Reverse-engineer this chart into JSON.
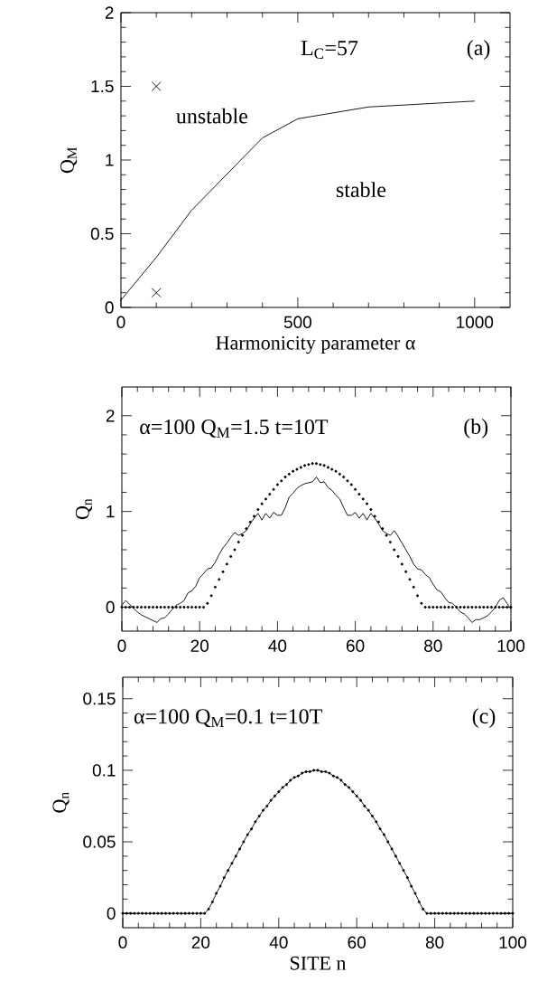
{
  "chart_data": [
    {
      "type": "line",
      "xlabel": "Harmonicity parameter α",
      "ylabel": "Q$_{M}$",
      "xlim": [
        0,
        1100
      ],
      "ylim": [
        0,
        2
      ],
      "xticks": [
        0,
        500,
        1000
      ],
      "yticks": [
        0,
        0.5,
        1,
        1.5,
        2
      ],
      "annotations": [
        "L$_{C}$=57",
        "(a)",
        "unstable",
        "stable"
      ],
      "series": [
        {
          "color": "#000000",
          "line_style": "solid",
          "x": [
            0,
            100,
            200,
            400,
            500,
            700,
            1000
          ],
          "values": [
            0.05,
            0.34,
            0.66,
            1.15,
            1.28,
            1.36,
            1.4
          ]
        },
        {
          "type": "scatter",
          "color": "#000000",
          "marker": "cross",
          "x": [
            100,
            100
          ],
          "values": [
            1.5,
            0.1
          ]
        }
      ]
    },
    {
      "type": "line",
      "ylabel": "Q$_{n}$",
      "xlim": [
        0,
        100
      ],
      "ylim": [
        -0.25,
        2.3
      ],
      "xticks": [
        0,
        20,
        40,
        60,
        80,
        100
      ],
      "yticks": [
        0,
        1,
        2
      ],
      "annotations": [
        "α=100  Q$_{M}$=1.5  t=10T",
        "(b)"
      ],
      "x": [
        0,
        1,
        2,
        3,
        4,
        5,
        6,
        7,
        8,
        9,
        10,
        11,
        12,
        13,
        14,
        15,
        16,
        17,
        18,
        19,
        20,
        21,
        22,
        23,
        24,
        25,
        26,
        27,
        28,
        29,
        30,
        31,
        32,
        33,
        34,
        35,
        36,
        37,
        38,
        39,
        40,
        41,
        42,
        43,
        44,
        45,
        46,
        47,
        48,
        49,
        50,
        51,
        52,
        53,
        54,
        55,
        56,
        57,
        58,
        59,
        60,
        61,
        62,
        63,
        64,
        65,
        66,
        67,
        68,
        69,
        70,
        71,
        72,
        73,
        74,
        75,
        76,
        77,
        78,
        79,
        80,
        81,
        82,
        83,
        84,
        85,
        86,
        87,
        88,
        89,
        90,
        91,
        92,
        93,
        94,
        95,
        96,
        97,
        98,
        99,
        100
      ],
      "series": [
        {
          "type": "scatter",
          "color": "#000000",
          "marker": "circle",
          "values": [
            0,
            0,
            0,
            0,
            0,
            0,
            0,
            0,
            0,
            0,
            0,
            0,
            0,
            0,
            0,
            0,
            0,
            0,
            0,
            0,
            0,
            0,
            0.04,
            0.12,
            0.21,
            0.29,
            0.37,
            0.45,
            0.53,
            0.6,
            0.68,
            0.75,
            0.82,
            0.89,
            0.95,
            1.02,
            1.08,
            1.13,
            1.18,
            1.23,
            1.28,
            1.32,
            1.36,
            1.39,
            1.42,
            1.44,
            1.46,
            1.48,
            1.49,
            1.5,
            1.5,
            1.49,
            1.48,
            1.46,
            1.44,
            1.42,
            1.39,
            1.36,
            1.32,
            1.28,
            1.23,
            1.18,
            1.13,
            1.08,
            1.02,
            0.95,
            0.89,
            0.82,
            0.75,
            0.68,
            0.6,
            0.53,
            0.45,
            0.37,
            0.29,
            0.21,
            0.12,
            0.04,
            0,
            0,
            0,
            0,
            0,
            0,
            0,
            0,
            0,
            0,
            0,
            0,
            0,
            0,
            0,
            0,
            0,
            0,
            0,
            0,
            0,
            0,
            0
          ]
        },
        {
          "color": "#000000",
          "line_style": "solid",
          "values": [
            0.02,
            0.07,
            0.03,
            -0.01,
            -0.05,
            -0.08,
            -0.1,
            -0.12,
            -0.14,
            -0.16,
            -0.12,
            -0.11,
            -0.07,
            -0.02,
            0.02,
            0.04,
            0.07,
            0.15,
            0.17,
            0.22,
            0.31,
            0.35,
            0.4,
            0.41,
            0.47,
            0.55,
            0.62,
            0.67,
            0.73,
            0.78,
            0.75,
            0.77,
            0.8,
            0.87,
            0.93,
            0.98,
            0.91,
            0.98,
            0.93,
            0.99,
            0.96,
            0.96,
            1.04,
            1.15,
            1.19,
            1.24,
            1.27,
            1.29,
            1.3,
            1.31,
            1.36,
            1.3,
            1.31,
            1.25,
            1.22,
            1.17,
            1.13,
            1.04,
            0.96,
            0.96,
            0.99,
            0.93,
            0.98,
            0.91,
            0.98,
            0.93,
            0.87,
            0.8,
            0.77,
            0.75,
            0.8,
            0.74,
            0.67,
            0.6,
            0.53,
            0.45,
            0.4,
            0.39,
            0.34,
            0.31,
            0.24,
            0.18,
            0.16,
            0.1,
            0.05,
            0.04,
            0,
            -0.05,
            -0.07,
            -0.11,
            -0.16,
            -0.13,
            -0.13,
            -0.11,
            -0.09,
            -0.05,
            0,
            0.07,
            0.1,
            0.04,
            -0.02
          ]
        }
      ]
    },
    {
      "type": "line",
      "xlabel": "SITE n",
      "ylabel": "Q$_{n}$",
      "xlim": [
        0,
        100
      ],
      "ylim": [
        -0.01,
        0.165
      ],
      "xticks": [
        0,
        20,
        40,
        60,
        80,
        100
      ],
      "yticks": [
        0,
        0.05,
        0.1,
        0.15
      ],
      "marker": "circle",
      "annotations": [
        "α=100  Q$_{M}$=0.1   t=10T",
        "(c)"
      ],
      "x": [
        0,
        1,
        2,
        3,
        4,
        5,
        6,
        7,
        8,
        9,
        10,
        11,
        12,
        13,
        14,
        15,
        16,
        17,
        18,
        19,
        20,
        21,
        22,
        23,
        24,
        25,
        26,
        27,
        28,
        29,
        30,
        31,
        32,
        33,
        34,
        35,
        36,
        37,
        38,
        39,
        40,
        41,
        42,
        43,
        44,
        45,
        46,
        47,
        48,
        49,
        50,
        51,
        52,
        53,
        54,
        55,
        56,
        57,
        58,
        59,
        60,
        61,
        62,
        63,
        64,
        65,
        66,
        67,
        68,
        69,
        70,
        71,
        72,
        73,
        74,
        75,
        76,
        77,
        78,
        79,
        80,
        81,
        82,
        83,
        84,
        85,
        86,
        87,
        88,
        89,
        90,
        91,
        92,
        93,
        94,
        95,
        96,
        97,
        98,
        99,
        100
      ],
      "series": [
        {
          "color": "#000000",
          "line_style": "solid",
          "values": [
            0,
            0,
            0,
            0,
            0,
            0,
            0,
            0,
            0,
            0,
            0,
            0,
            0,
            0,
            0,
            0,
            0,
            0,
            0,
            0,
            0,
            0,
            0.003,
            0.008,
            0.014,
            0.019,
            0.025,
            0.03,
            0.035,
            0.04,
            0.045,
            0.05,
            0.055,
            0.059,
            0.064,
            0.068,
            0.072,
            0.075,
            0.079,
            0.082,
            0.085,
            0.088,
            0.09,
            0.093,
            0.095,
            0.096,
            0.098,
            0.099,
            0.099,
            0.1,
            0.1,
            0.099,
            0.099,
            0.098,
            0.096,
            0.095,
            0.093,
            0.09,
            0.088,
            0.085,
            0.082,
            0.079,
            0.075,
            0.072,
            0.068,
            0.064,
            0.059,
            0.055,
            0.05,
            0.045,
            0.04,
            0.035,
            0.03,
            0.025,
            0.019,
            0.014,
            0.008,
            0.003,
            0,
            0,
            0,
            0,
            0,
            0,
            0,
            0,
            0,
            0,
            0,
            0,
            0,
            0,
            0,
            0,
            0,
            0,
            0,
            0,
            0,
            0,
            0
          ]
        }
      ]
    }
  ]
}
